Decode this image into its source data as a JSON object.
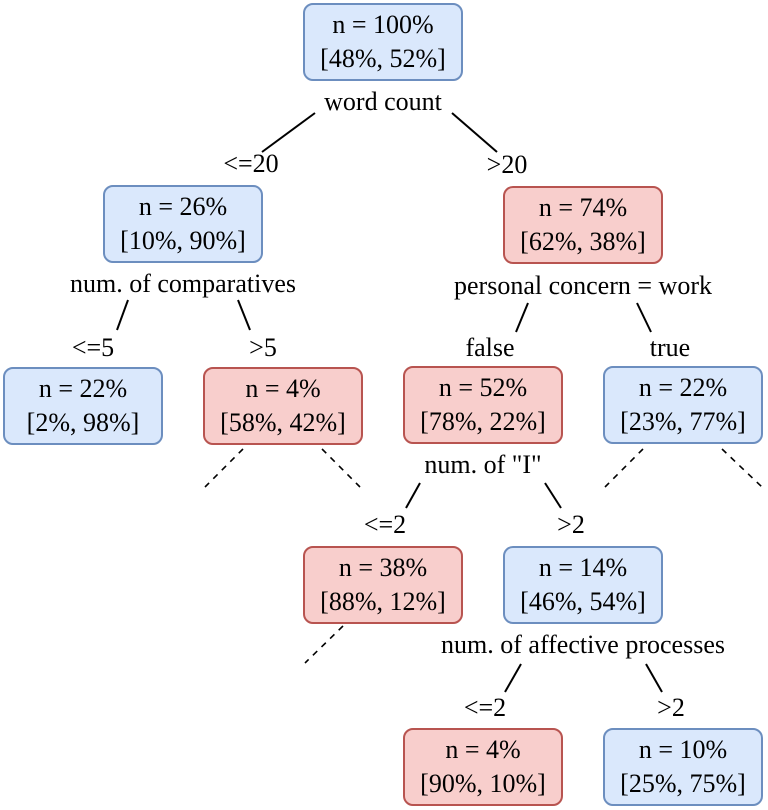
{
  "nodes": {
    "root": {
      "n": "n = 100%",
      "dist": "[48%, 52%]"
    },
    "le20": {
      "n": "n = 26%",
      "dist": "[10%, 90%]"
    },
    "gt20": {
      "n": "n = 74%",
      "dist": "[62%, 38%]"
    },
    "le5": {
      "n": "n = 22%",
      "dist": "[2%, 98%]"
    },
    "gt5": {
      "n": "n = 4%",
      "dist": "[58%, 42%]"
    },
    "false": {
      "n": "n = 52%",
      "dist": "[78%, 22%]"
    },
    "true": {
      "n": "n = 22%",
      "dist": "[23%, 77%]"
    },
    "le2": {
      "n": "n = 38%",
      "dist": "[88%, 12%]"
    },
    "gt2": {
      "n": "n = 14%",
      "dist": "[46%, 54%]"
    },
    "aff_le2": {
      "n": "n = 4%",
      "dist": "[90%, 10%]"
    },
    "aff_gt2": {
      "n": "n = 10%",
      "dist": "[25%, 75%]"
    }
  },
  "splits": {
    "root": "word count",
    "le20": "num. of comparatives",
    "gt20": "personal concern = work",
    "false": "num. of \"I\"",
    "gt2": "num. of affective processes"
  },
  "edges": {
    "le20": "<=20",
    "gt20": ">20",
    "le5": "<=5",
    "gt5": ">5",
    "false": "false",
    "true": "true",
    "le2": "<=2",
    "gt2": ">2",
    "aff_le2": "<=2",
    "aff_gt2": ">2"
  },
  "colors": {
    "blue_fill": "#dae8fc",
    "blue_stroke": "#6c8ebf",
    "red_fill": "#f8cecc",
    "red_stroke": "#b85450"
  }
}
